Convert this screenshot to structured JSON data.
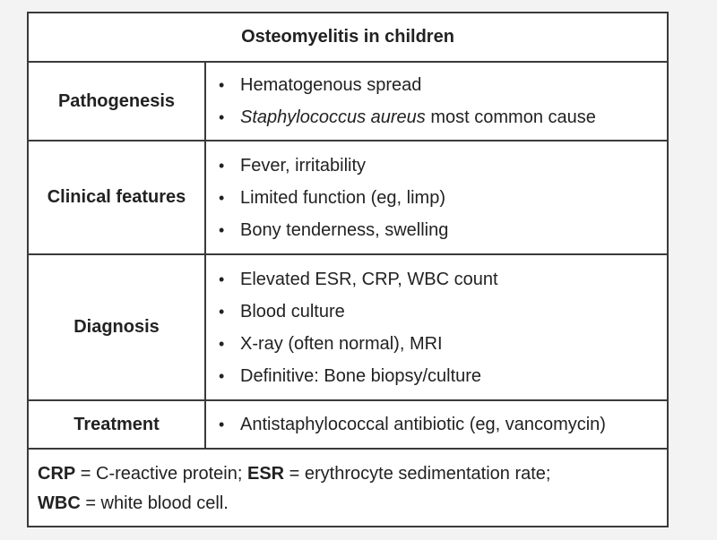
{
  "table": {
    "title": "Osteomyelitis in children",
    "rows": [
      {
        "label": "Pathogenesis",
        "items": [
          {
            "text": "Hematogenous spread"
          },
          {
            "italic": "Staphylococcus aureus",
            "text": " most common cause"
          }
        ]
      },
      {
        "label": "Clinical features",
        "items": [
          {
            "text": "Fever, irritability"
          },
          {
            "text": "Limited function (eg, limp)"
          },
          {
            "text": "Bony tenderness, swelling"
          }
        ]
      },
      {
        "label": "Diagnosis",
        "items": [
          {
            "text": "Elevated ESR, CRP, WBC count"
          },
          {
            "text": "Blood culture"
          },
          {
            "text": "X-ray (often normal), MRI"
          },
          {
            "text": "Definitive: Bone biopsy/culture"
          }
        ]
      },
      {
        "label": "Treatment",
        "items": [
          {
            "text": "Antistaphylococcal antibiotic (eg, vancomycin)"
          }
        ]
      }
    ],
    "bullet": "•",
    "footnote": {
      "crp_abbr": "CRP",
      "crp_def": " = C-reactive protein; ",
      "esr_abbr": "ESR",
      "esr_def": " = erythrocyte sedimentation rate;",
      "wbc_abbr": "WBC",
      "wbc_def": " = white blood cell."
    }
  }
}
